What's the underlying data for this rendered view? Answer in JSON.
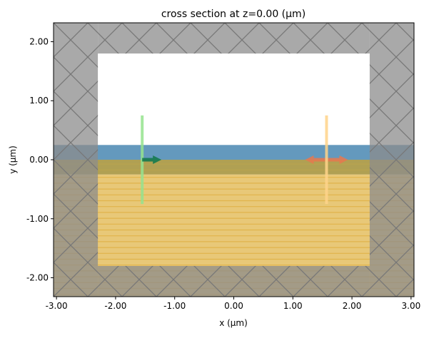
{
  "chart_data": {
    "type": "diagram",
    "title": "cross section at z=0.00 (μm)",
    "xlabel": "x (μm)",
    "ylabel": "y (μm)",
    "xlim": [
      -3.05,
      3.05
    ],
    "ylim": [
      -2.32,
      2.32
    ],
    "grid": false,
    "xticks": [
      -3,
      -2,
      -1,
      0,
      1,
      2,
      3
    ],
    "xtick_labels": [
      "-3.00",
      "-2.00",
      "-1.00",
      "0.00",
      "1.00",
      "2.00",
      "3.00"
    ],
    "yticks": [
      -2,
      -1,
      0,
      1,
      2
    ],
    "ytick_labels": [
      "-2.00",
      "-1.00",
      "0.00",
      "1.00",
      "2.00"
    ],
    "colors": {
      "pml": "#8c8c8c",
      "waveguide": "#6499bd",
      "overlap": "#b0a053",
      "substrate": "#e8c878",
      "substrate_lines": "#dfae40",
      "source": "#96e38f",
      "source_arrow": "#157a4f",
      "monitor": "#ffd48a",
      "monitor_arrow": "#e8784f"
    },
    "structures": [
      {
        "name": "substrate",
        "x": [
          -3.05,
          3.05
        ],
        "y": [
          -2.32,
          -0.25
        ],
        "color": "#e8c878",
        "hatch": "horizontal"
      },
      {
        "name": "overlap-band",
        "x": [
          -3.05,
          3.05
        ],
        "y": [
          -0.25,
          0.0
        ],
        "color": "#b0a053"
      },
      {
        "name": "waveguide",
        "x": [
          -3.05,
          3.05
        ],
        "y": [
          0.0,
          0.25
        ],
        "color": "#6499bd"
      }
    ],
    "pml": [
      {
        "name": "pml-left",
        "x": [
          -3.05,
          -2.3
        ],
        "y": [
          -2.32,
          2.32
        ]
      },
      {
        "name": "pml-right",
        "x": [
          2.3,
          3.05
        ],
        "y": [
          -2.32,
          2.32
        ]
      },
      {
        "name": "pml-top",
        "x": [
          -2.3,
          2.3
        ],
        "y": [
          1.8,
          2.32
        ]
      },
      {
        "name": "pml-bottom",
        "x": [
          -2.3,
          2.3
        ],
        "y": [
          -2.32,
          -1.8
        ]
      }
    ],
    "source": {
      "x": -1.55,
      "y": [
        -0.75,
        0.75
      ],
      "direction": "+x"
    },
    "monitor": {
      "x": 1.57,
      "y": [
        -0.75,
        0.75
      ],
      "direction": "both"
    }
  }
}
